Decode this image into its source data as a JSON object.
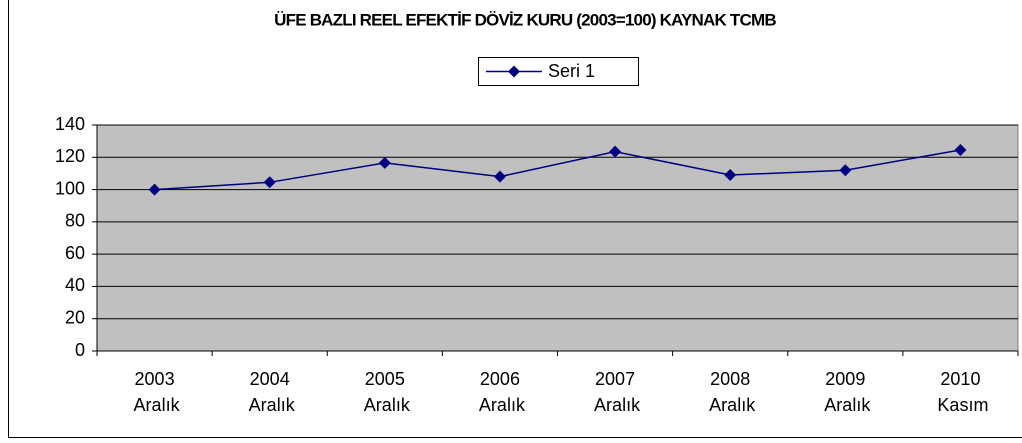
{
  "chart_data": {
    "type": "line",
    "title": "ÜFE BAZLI REEL EFEKTİF DÖVİZ KURU (2003=100) KAYNAK TCMB",
    "categories": [
      "2003 Aralık",
      "2004 Aralık",
      "2005 Aralık",
      "2006 Aralık",
      "2007 Aralık",
      "2008 Aralık",
      "2009 Aralık",
      "2010 Kasım"
    ],
    "series": [
      {
        "name": "Seri 1",
        "color": "#000080",
        "values": [
          100,
          104.5,
          116.5,
          108,
          123.5,
          109,
          112,
          124.5
        ]
      }
    ],
    "ylim": [
      0,
      140
    ],
    "yticks": [
      0,
      20,
      40,
      60,
      80,
      100,
      120,
      140
    ],
    "grid": true,
    "legend": "top"
  }
}
